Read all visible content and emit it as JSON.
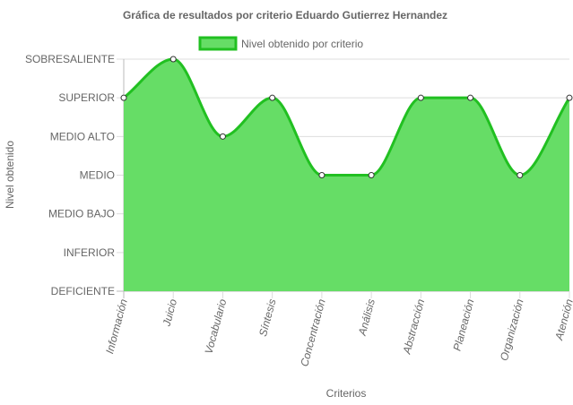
{
  "chart_data": {
    "type": "area",
    "title": "Gráfica de resultados por criterio Eduardo Gutierrez Hernandez",
    "xlabel": "Criterios",
    "ylabel": "Nivel obtenido",
    "categories": [
      "Información",
      "Juicio",
      "Vocabulario",
      "Síntesis",
      "Concentración",
      "Análisis",
      "Abstracción",
      "Planeación",
      "Organización",
      "Atención"
    ],
    "y_levels": [
      "DEFICIENTE",
      "INFERIOR",
      "MEDIO BAJO",
      "MEDIO",
      "MEDIO ALTO",
      "SUPERIOR",
      "SOBRESALIENTE"
    ],
    "ylim": [
      0,
      6
    ],
    "series": [
      {
        "name": "Nivel obtenido por criterio",
        "values": [
          5,
          6,
          4,
          5,
          3,
          3,
          5,
          5,
          3,
          5
        ],
        "line_color": "#21c021",
        "fill_color": "#66dd66"
      }
    ],
    "legend_position": "top",
    "grid": true
  }
}
